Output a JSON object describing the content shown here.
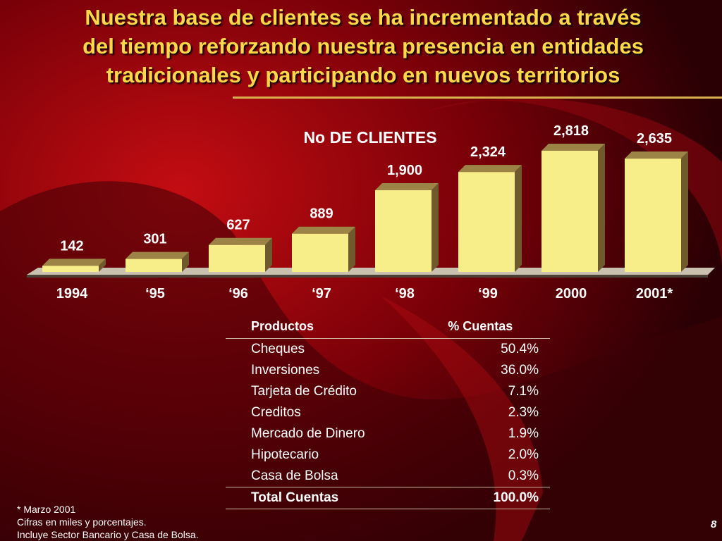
{
  "slide": {
    "title_lines": [
      "Nuestra base de clientes se ha incrementado a través",
      "del tiempo reforzando nuestra presencia en entidades",
      "tradicionales y participando en nuevos territorios"
    ],
    "page_number": "8"
  },
  "chart_data": {
    "type": "bar",
    "title": "No DE CLIENTES",
    "categories": [
      "1994",
      "‘95",
      "‘96",
      "‘97",
      "‘98",
      "‘99",
      "2000",
      "2001*"
    ],
    "values": [
      142,
      301,
      627,
      889,
      1900,
      2324,
      2818,
      2635
    ],
    "value_labels": [
      "142",
      "301",
      "627",
      "889",
      "1,900",
      "2,324",
      "2,818",
      "2,635"
    ],
    "xlabel": "",
    "ylabel": "",
    "grid": false,
    "legend": "none",
    "colors": {
      "bar_front": "#f7ee8a",
      "bar_side": "#6e5a2c",
      "bar_top": "#9c8446"
    }
  },
  "table": {
    "headers": [
      "Productos",
      "% Cuentas"
    ],
    "rows": [
      [
        "Cheques",
        "50.4%"
      ],
      [
        "Inversiones",
        "36.0%"
      ],
      [
        "Tarjeta de Crédito",
        "7.1%"
      ],
      [
        "Creditos",
        "2.3%"
      ],
      [
        "Mercado de Dinero",
        "1.9%"
      ],
      [
        "Hipotecario",
        "2.0%"
      ],
      [
        "Casa de Bolsa",
        "0.3%"
      ]
    ],
    "total": [
      "Total Cuentas",
      "100.0%"
    ]
  },
  "footnotes": [
    "* Marzo 2001",
    "Cifras en miles y porcentajes.",
    "Incluye Sector Bancario y Casa de Bolsa."
  ]
}
